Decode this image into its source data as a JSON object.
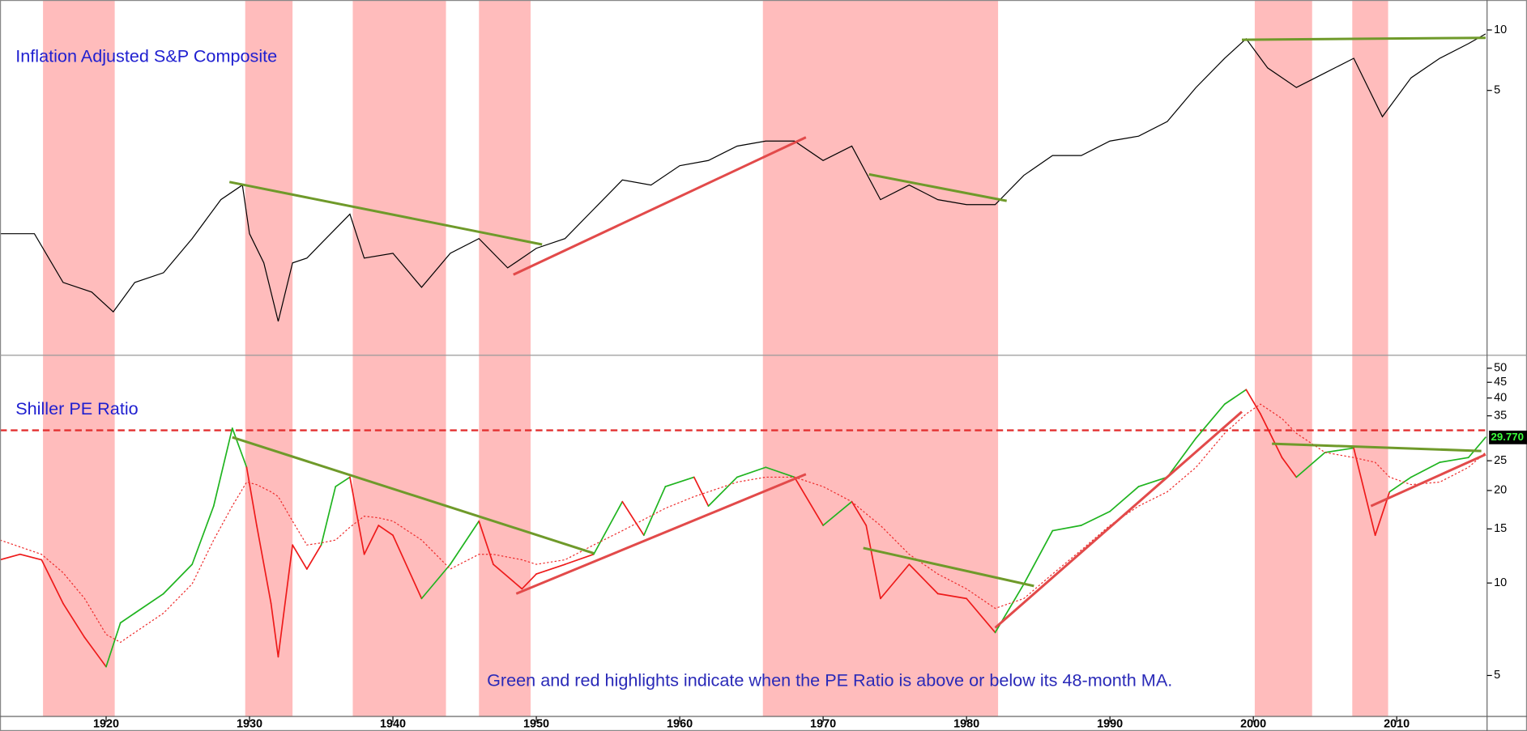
{
  "chart_data": [
    {
      "type": "line",
      "title": "Inflation Adjusted S&P Composite",
      "log_scale": true,
      "xlim": [
        1912.6,
        2016.3
      ],
      "ylim": [
        0.24,
        14.1
      ],
      "yticks": [
        5,
        10
      ],
      "shaded_periods": [
        [
          1915.6,
          1920.6
        ],
        [
          1929.7,
          1933.0
        ],
        [
          1937.2,
          1943.7
        ],
        [
          1946.0,
          1949.6
        ],
        [
          1965.8,
          1982.2
        ],
        [
          2000.1,
          2004.1
        ],
        [
          2006.9,
          2009.4
        ]
      ],
      "shade_color": "#ffbcbc",
      "x": [
        1912.6,
        1915,
        1917,
        1919,
        1920.5,
        1922,
        1924,
        1926,
        1928,
        1929.5,
        1930,
        1931,
        1932,
        1933,
        1934,
        1935,
        1937,
        1938,
        1940,
        1942,
        1944,
        1946,
        1948,
        1950,
        1952,
        1954,
        1956,
        1958,
        1960,
        1962,
        1964,
        1966,
        1968,
        1970,
        1972,
        1974,
        1976,
        1978,
        1980,
        1982,
        1984,
        1986,
        1988,
        1990,
        1992,
        1994,
        1996,
        1998,
        1999.5,
        2001,
        2003,
        2005,
        2007,
        2009,
        2011,
        2013,
        2015,
        2016.2
      ],
      "series": [
        {
          "color": "#000000",
          "values": [
            0.967,
            0.967,
            0.553,
            0.495,
            0.395,
            0.553,
            0.618,
            0.915,
            1.43,
            1.69,
            0.967,
            0.692,
            0.354,
            0.692,
            0.731,
            0.865,
            1.21,
            0.731,
            0.773,
            0.523,
            0.773,
            0.915,
            0.654,
            0.818,
            0.915,
            1.28,
            1.79,
            1.69,
            2.11,
            2.24,
            2.64,
            2.8,
            2.8,
            2.24,
            2.64,
            1.43,
            1.69,
            1.43,
            1.35,
            1.35,
            1.89,
            2.37,
            2.37,
            2.8,
            2.96,
            3.5,
            5.17,
            7.23,
            9.04,
            6.47,
            5.17,
            6.11,
            7.23,
            3.7,
            5.78,
            7.23,
            8.55,
            9.56
          ]
        }
      ],
      "trendlines": [
        {
          "color": "#6f9a2a",
          "points": [
            [
              1928.6,
              1.75
            ],
            [
              1950.4,
              0.855
            ]
          ]
        },
        {
          "color": "#e24a4a",
          "points": [
            [
              1948.4,
              0.605
            ],
            [
              1968.8,
              2.92
            ]
          ]
        },
        {
          "color": "#6f9a2a",
          "points": [
            [
              1973.2,
              1.91
            ],
            [
              1982.8,
              1.41
            ]
          ]
        },
        {
          "color": "#6f9a2a",
          "points": [
            [
              1999.2,
              8.94
            ],
            [
              2016.2,
              9.14
            ]
          ]
        }
      ]
    },
    {
      "type": "line",
      "title": "Shiller PE Ratio",
      "log_scale": true,
      "annotation": "Green and red highlights indicate when the PE Ratio is above or below its 48-month MA.",
      "xlim": [
        1912.6,
        2016.3
      ],
      "xticks": [
        1920,
        1930,
        1940,
        1950,
        1960,
        1970,
        1980,
        1990,
        2000,
        2010
      ],
      "ylim": [
        3.68,
        55.1
      ],
      "yticks": [
        5,
        10,
        15,
        20,
        25,
        35,
        40,
        45,
        50
      ],
      "reference_line": {
        "value": 31.4,
        "color": "#e23030"
      },
      "last_value": {
        "value": 29.77,
        "label": "29.770"
      },
      "x": [
        1912.6,
        1914,
        1915.5,
        1917,
        1918.5,
        1920,
        1921,
        1922,
        1924,
        1926,
        1927.5,
        1928.8,
        1929.8,
        1930.5,
        1931.5,
        1932,
        1933,
        1934,
        1935,
        1936,
        1937,
        1938,
        1939,
        1940,
        1942,
        1944,
        1946,
        1947,
        1949,
        1950,
        1952,
        1954,
        1956,
        1957.5,
        1959,
        1961,
        1962,
        1964,
        1966,
        1968,
        1970,
        1972,
        1973,
        1974,
        1976,
        1978,
        1980,
        1982,
        1984,
        1986,
        1988,
        1990,
        1992,
        1994,
        1996,
        1998,
        1999.5,
        2000.5,
        2002,
        2003,
        2005,
        2007,
        2008.5,
        2009.5,
        2011,
        2013,
        2015,
        2016.2
      ],
      "series": [
        {
          "color": "#1fb41f",
          "below_color": "#ee1a1a",
          "values": [
            11.9,
            12.4,
            11.9,
            8.58,
            6.65,
            5.34,
            7.42,
            7.98,
            9.23,
            11.5,
            17.8,
            31.9,
            23.8,
            15.4,
            8.58,
            5.75,
            13.3,
            11.1,
            13.3,
            20.6,
            22.1,
            12.4,
            15.4,
            14.3,
            8.9,
            11.5,
            15.9,
            11.5,
            9.57,
            10.7,
            11.5,
            12.4,
            18.4,
            14.3,
            20.6,
            22.1,
            17.8,
            22.1,
            23.8,
            22.1,
            15.4,
            18.4,
            15.4,
            8.9,
            11.5,
            9.23,
            8.9,
            6.9,
            9.93,
            14.8,
            15.4,
            17.1,
            20.6,
            22.1,
            29.6,
            38.2,
            42.6,
            35.5,
            25.6,
            22.1,
            26.6,
            27.5,
            14.3,
            19.8,
            22.1,
            24.7,
            25.6,
            29.8
          ]
        },
        {
          "color": "#ee2a2a",
          "dotted": true,
          "values": [
            13.8,
            13.1,
            12.4,
            10.8,
            8.9,
            6.8,
            6.41,
            6.9,
            7.98,
            9.93,
            13.8,
            17.8,
            21.3,
            20.9,
            19.8,
            19.1,
            15.9,
            13.3,
            13.5,
            13.8,
            15.2,
            16.5,
            16.3,
            15.9,
            13.8,
            11.1,
            12.4,
            12.4,
            11.9,
            11.5,
            11.9,
            13.3,
            14.8,
            16.1,
            17.5,
            19.1,
            19.8,
            21.3,
            22.1,
            22.1,
            20.6,
            18.4,
            16.8,
            15.4,
            12.4,
            10.7,
            9.57,
            8.27,
            8.9,
            10.7,
            12.8,
            15.4,
            17.8,
            19.8,
            23.8,
            30.7,
            35.5,
            38.2,
            34.3,
            30.7,
            26.6,
            25.6,
            24.7,
            22.1,
            20.9,
            21.3,
            23.8,
            26.6
          ]
        }
      ],
      "trendlines": [
        {
          "color": "#6f9a2a",
          "points": [
            [
              1928.8,
              29.8
            ],
            [
              1954.0,
              12.5
            ]
          ]
        },
        {
          "color": "#e24a4a",
          "points": [
            [
              1948.6,
              9.23
            ],
            [
              1968.8,
              22.6
            ]
          ]
        },
        {
          "color": "#6f9a2a",
          "points": [
            [
              1972.8,
              13.0
            ],
            [
              1984.7,
              9.78
            ]
          ]
        },
        {
          "color": "#e24a4a",
          "points": [
            [
              1982.0,
              7.15
            ],
            [
              1999.2,
              36.1
            ]
          ]
        },
        {
          "color": "#6f9a2a",
          "points": [
            [
              2001.3,
              28.4
            ],
            [
              2015.9,
              26.9
            ]
          ]
        },
        {
          "color": "#e24a4a",
          "points": [
            [
              2008.2,
              17.8
            ],
            [
              2016.2,
              26.2
            ]
          ]
        }
      ]
    }
  ]
}
